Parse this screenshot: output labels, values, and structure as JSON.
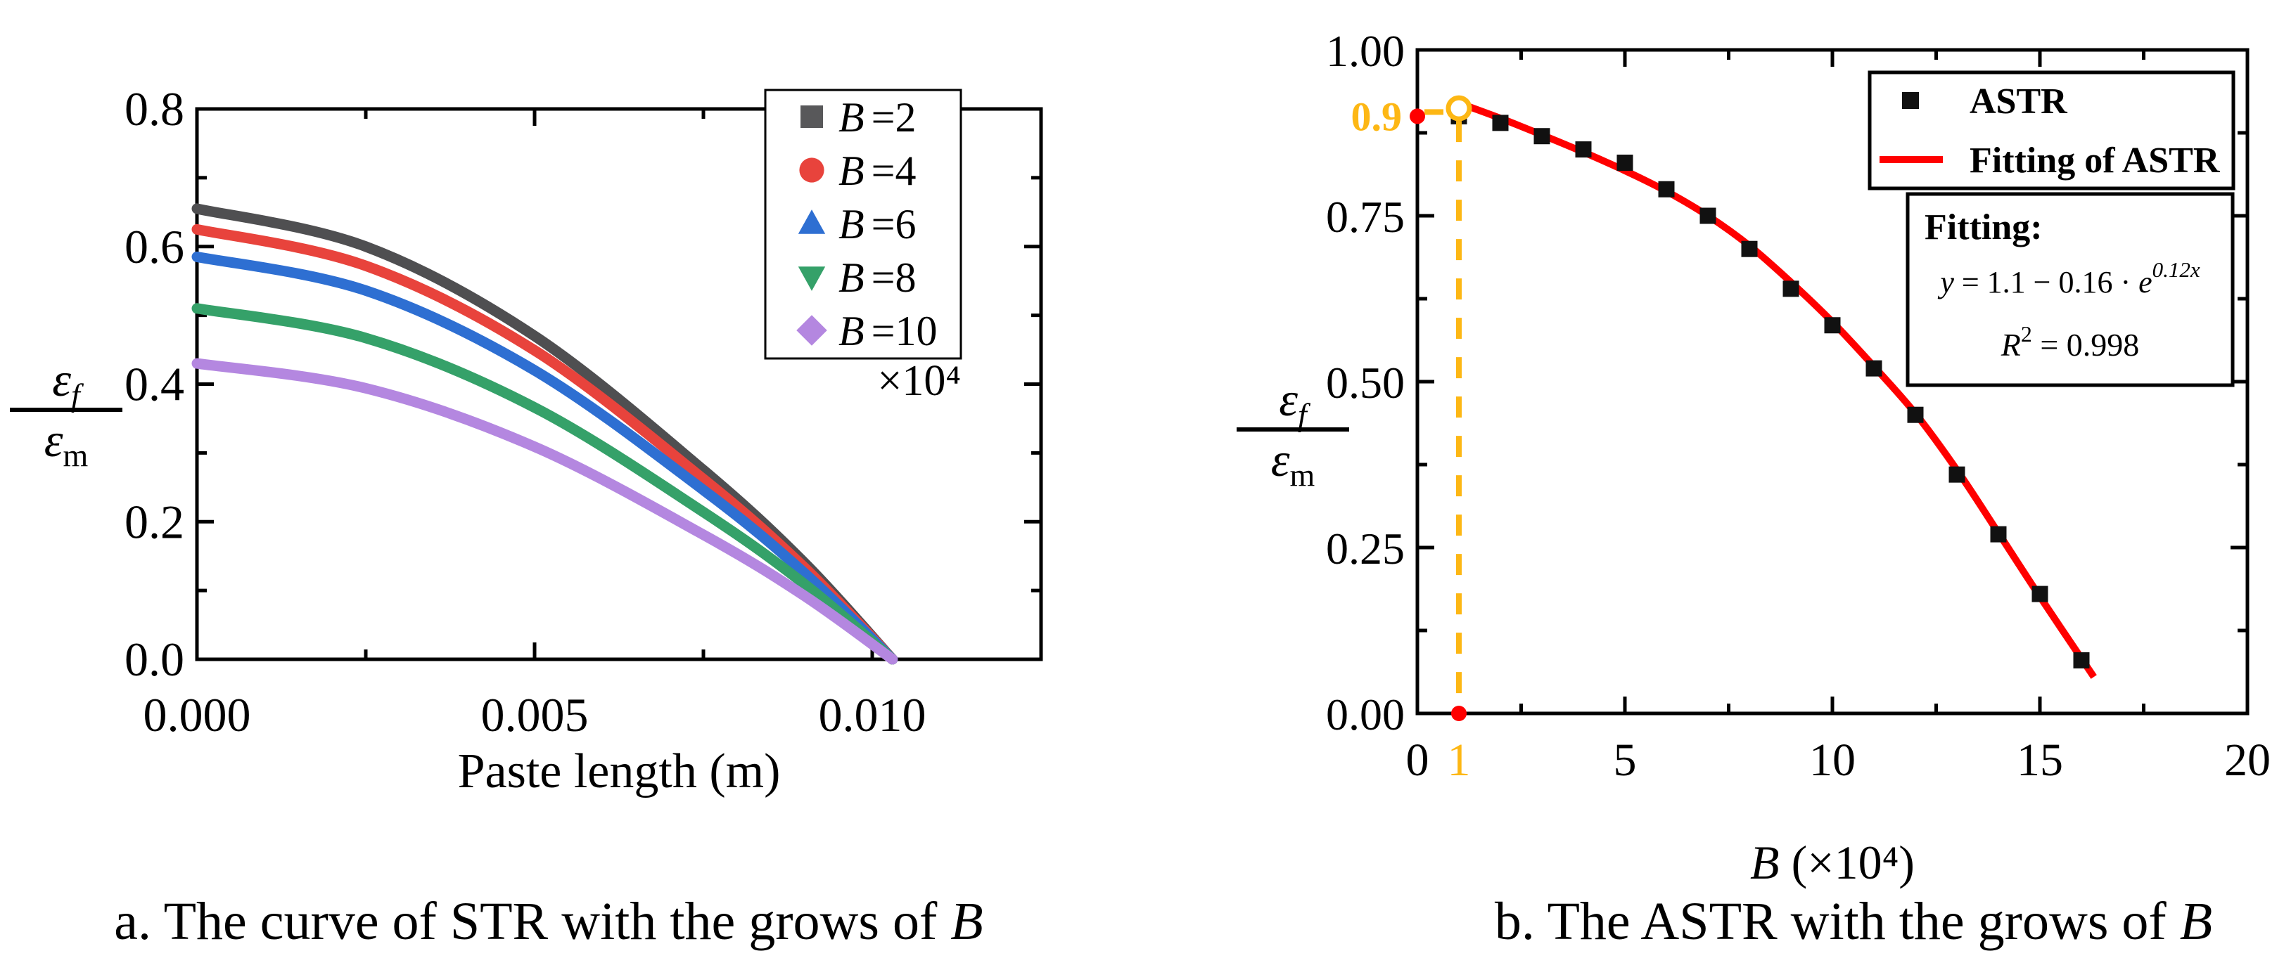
{
  "text": {
    "eps": "ε",
    "sub_f": "f",
    "sub_m": "m",
    "caption_a": "a. The curve of STR with the grows of ",
    "caption_b": "b. The ASTR with the grows of ",
    "caption_math": "B",
    "xlabel_b_sym": "B",
    "xlabel_b_rest": " (×10⁴)"
  },
  "chart_data": [
    {
      "id": "panel-a",
      "type": "line",
      "title": "a. The curve of STR with the grows of B",
      "xlabel": "Paste length (m)",
      "ylabel": "ε_f / ε_m",
      "xlim": [
        0,
        0.0125
      ],
      "ylim": [
        0,
        0.8
      ],
      "grid": false,
      "x_major": [
        {
          "v": 0,
          "label": "0.000"
        },
        {
          "v": 0.005,
          "label": "0.005"
        },
        {
          "v": 0.01,
          "label": "0.010"
        }
      ],
      "x_minor": [
        0.0025,
        0.0075,
        0.0125
      ],
      "y_major": [
        {
          "v": 0,
          "label": "0.0"
        },
        {
          "v": 0.2,
          "label": "0.2"
        },
        {
          "v": 0.4,
          "label": "0.4"
        },
        {
          "v": 0.6,
          "label": "0.6"
        },
        {
          "v": 0.8,
          "label": "0.8"
        }
      ],
      "y_minor": [
        0.1,
        0.3,
        0.5,
        0.7
      ],
      "legend": {
        "position": "upper right",
        "scale_note": "×10⁴",
        "entries": [
          {
            "sym": "B",
            "eq": "=2",
            "marker": "square",
            "color": "#58585A"
          },
          {
            "sym": "B",
            "eq": "=4",
            "marker": "circle",
            "color": "#E8433C"
          },
          {
            "sym": "B",
            "eq": "=6",
            "marker": "triangle-up",
            "color": "#2E6FD2"
          },
          {
            "sym": "B",
            "eq": "=8",
            "marker": "triangle-down",
            "color": "#35A169"
          },
          {
            "sym": "B",
            "eq": "=10",
            "marker": "diamond",
            "color": "#B487E0"
          }
        ]
      },
      "series": [
        {
          "name": "B=2",
          "B": 2,
          "color": "#4F4F51",
          "x": [
            0,
            0.0025,
            0.005,
            0.0075,
            0.009,
            0.0103
          ],
          "y": [
            0.655,
            0.6,
            0.47,
            0.275,
            0.14,
            0
          ]
        },
        {
          "name": "B=4",
          "B": 4,
          "color": "#E8433C",
          "x": [
            0,
            0.0025,
            0.005,
            0.0075,
            0.009,
            0.0103
          ],
          "y": [
            0.625,
            0.572,
            0.449,
            0.262,
            0.133,
            0
          ]
        },
        {
          "name": "B=6",
          "B": 6,
          "color": "#2E6FD2",
          "x": [
            0,
            0.0025,
            0.005,
            0.0075,
            0.009,
            0.0103
          ],
          "y": [
            0.585,
            0.536,
            0.42,
            0.246,
            0.125,
            0
          ]
        },
        {
          "name": "B=8",
          "B": 8,
          "color": "#35A169",
          "x": [
            0,
            0.0025,
            0.005,
            0.0075,
            0.009,
            0.0103
          ],
          "y": [
            0.51,
            0.467,
            0.366,
            0.214,
            0.109,
            0
          ]
        },
        {
          "name": "B=10",
          "B": 10,
          "color": "#B487E0",
          "x": [
            0,
            0.0025,
            0.005,
            0.0075,
            0.009,
            0.0103
          ],
          "y": [
            0.43,
            0.394,
            0.309,
            0.181,
            0.092,
            0
          ]
        }
      ]
    },
    {
      "id": "panel-b",
      "type": "scatter",
      "title": "b. The ASTR with the grows of B",
      "xlabel": "B (×10⁴)",
      "ylabel": "ε_f / ε_m",
      "xlim": [
        0,
        20
      ],
      "ylim": [
        0,
        1.0
      ],
      "grid": false,
      "x_major": [
        {
          "v": 0,
          "label": "0"
        },
        {
          "v": 5,
          "label": "5"
        },
        {
          "v": 10,
          "label": "10"
        },
        {
          "v": 15,
          "label": "15"
        },
        {
          "v": 20,
          "label": "20"
        }
      ],
      "x_minor": [
        2.5,
        7.5,
        12.5,
        17.5
      ],
      "y_major": [
        {
          "v": 0,
          "label": "0.00"
        },
        {
          "v": 0.25,
          "label": "0.25"
        },
        {
          "v": 0.5,
          "label": "0.50"
        },
        {
          "v": 0.75,
          "label": "0.75"
        },
        {
          "v": 1.0,
          "label": "1.00"
        }
      ],
      "y_minor": [
        0.125,
        0.375,
        0.625,
        0.875
      ],
      "scatter": {
        "name": "ASTR",
        "marker": "square",
        "color": "#111111",
        "x": [
          1,
          2,
          3,
          4,
          5,
          6,
          7,
          8,
          9,
          10,
          11,
          12,
          13,
          14,
          15,
          16
        ],
        "y": [
          0.9,
          0.89,
          0.87,
          0.85,
          0.83,
          0.79,
          0.75,
          0.7,
          0.64,
          0.585,
          0.52,
          0.45,
          0.36,
          0.27,
          0.18,
          0.08
        ]
      },
      "fit": {
        "name": "Fitting of ASTR",
        "color": "#FF0000",
        "equation": "y = 1.1 − 0.16 · e^(0.12x)",
        "r_squared": 0.998,
        "x": [
          1,
          2,
          3,
          4,
          5,
          6,
          7,
          8,
          9,
          10,
          11,
          12,
          13,
          14,
          15,
          16.3
        ],
        "y": [
          0.92,
          0.897,
          0.872,
          0.846,
          0.818,
          0.787,
          0.75,
          0.705,
          0.65,
          0.59,
          0.523,
          0.452,
          0.367,
          0.272,
          0.176,
          0.055
        ]
      },
      "fit_box": {
        "title": "Fitting:",
        "eq_sym": "y",
        "eq_mid": " = 1.1 − 0.16 · ",
        "eq_base": "e",
        "eq_sup": "0.12x",
        "r2_sym": "R",
        "r2_sup": "2",
        "r2_tail": " = 0.998"
      },
      "annotation": {
        "color": "#FDB714",
        "dot_color": "#FF0000",
        "y_ref": 0.9,
        "y_ref_label": "0.9",
        "x_ref": 1,
        "x_ref_label": "1",
        "circle_point": [
          1,
          0.912
        ]
      }
    }
  ]
}
